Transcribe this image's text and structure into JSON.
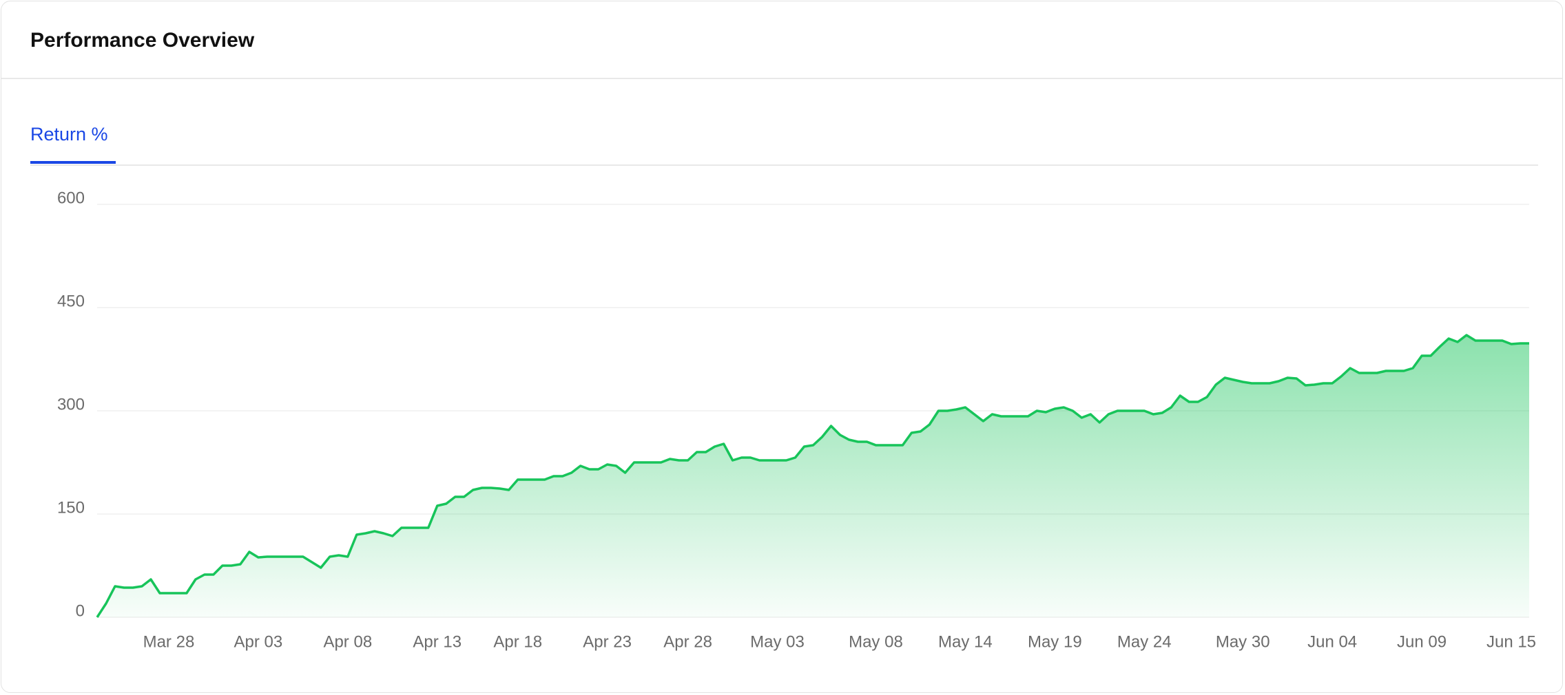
{
  "header": {
    "title": "Performance Overview"
  },
  "tabs": [
    {
      "label": "Return %",
      "active": true
    }
  ],
  "chart_data": {
    "type": "area",
    "color": "#17c45a",
    "grid": true,
    "ylim": [
      0,
      600
    ],
    "yticks": [
      0,
      150,
      300,
      450,
      600
    ],
    "categories": [
      null,
      null,
      null,
      null,
      null,
      null,
      null,
      null,
      "Mar 28",
      null,
      null,
      null,
      null,
      null,
      null,
      null,
      null,
      null,
      "Apr 03",
      null,
      null,
      null,
      null,
      null,
      null,
      null,
      null,
      null,
      "Apr 08",
      null,
      null,
      null,
      null,
      null,
      null,
      null,
      null,
      null,
      "Apr 13",
      null,
      null,
      null,
      null,
      null,
      null,
      null,
      null,
      "Apr 18",
      null,
      null,
      null,
      null,
      null,
      null,
      null,
      null,
      null,
      "Apr 23",
      null,
      null,
      null,
      null,
      null,
      null,
      null,
      null,
      "Apr 28",
      null,
      null,
      null,
      null,
      null,
      null,
      null,
      null,
      null,
      "May 03",
      null,
      null,
      null,
      null,
      null,
      null,
      null,
      null,
      null,
      null,
      "May 08",
      null,
      null,
      null,
      null,
      null,
      null,
      null,
      null,
      null,
      "May 14",
      null,
      null,
      null,
      null,
      null,
      null,
      null,
      null,
      null,
      "May 19",
      null,
      null,
      null,
      null,
      null,
      null,
      null,
      null,
      null,
      "May 24",
      null,
      null,
      null,
      null,
      null,
      null,
      null,
      null,
      null,
      null,
      "May 30",
      null,
      null,
      null,
      null,
      null,
      null,
      null,
      null,
      null,
      "Jun 04",
      null,
      null,
      null,
      null,
      null,
      null,
      null,
      null,
      null,
      "Jun 09",
      null,
      null,
      null,
      null,
      null,
      null,
      null,
      null,
      null,
      "Jun 15",
      null,
      null
    ],
    "values": [
      0,
      20,
      45,
      43,
      43,
      45,
      55,
      35,
      35,
      35,
      35,
      55,
      62,
      62,
      75,
      75,
      77,
      95,
      87,
      88,
      88,
      88,
      88,
      88,
      80,
      72,
      88,
      90,
      88,
      120,
      122,
      125,
      122,
      118,
      130,
      130,
      130,
      130,
      162,
      165,
      175,
      175,
      185,
      188,
      188,
      187,
      185,
      200,
      200,
      200,
      200,
      205,
      205,
      210,
      220,
      215,
      215,
      222,
      220,
      210,
      225,
      225,
      225,
      225,
      230,
      228,
      228,
      240,
      240,
      248,
      252,
      228,
      232,
      232,
      228,
      228,
      228,
      228,
      232,
      248,
      250,
      262,
      278,
      265,
      258,
      255,
      255,
      250,
      250,
      250,
      250,
      268,
      270,
      280,
      300,
      300,
      302,
      305,
      295,
      285,
      295,
      292,
      292,
      292,
      292,
      300,
      298,
      303,
      305,
      300,
      290,
      295,
      283,
      295,
      300,
      300,
      300,
      300,
      295,
      297,
      305,
      322,
      313,
      313,
      320,
      338,
      348,
      345,
      342,
      340,
      340,
      340,
      343,
      348,
      347,
      337,
      338,
      340,
      340,
      350,
      362,
      355,
      355,
      355,
      358,
      358,
      358,
      362,
      380,
      380,
      393,
      405,
      400,
      410,
      402,
      402,
      402,
      402,
      397,
      398,
      398
    ]
  }
}
